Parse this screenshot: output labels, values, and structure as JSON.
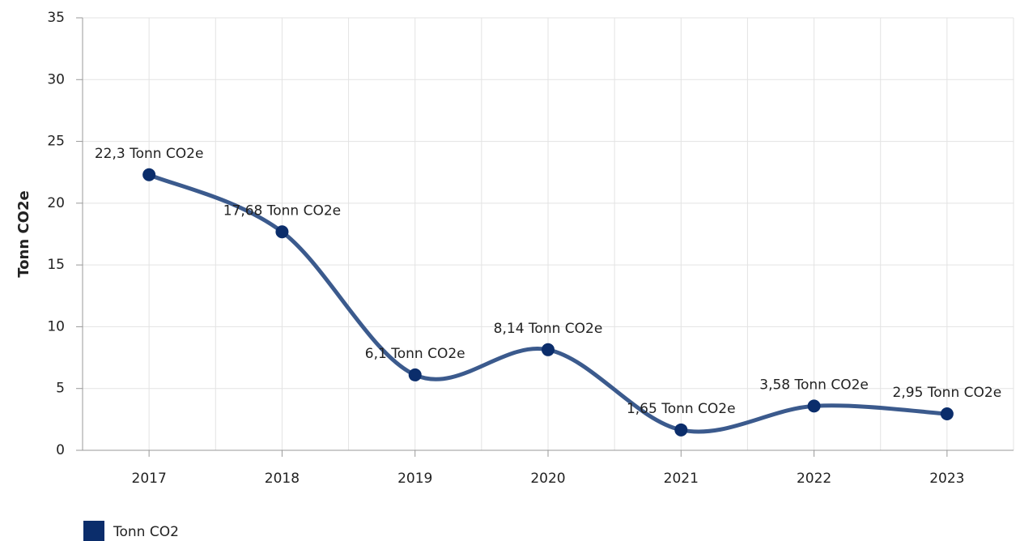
{
  "chart_data": {
    "type": "line",
    "y_label": "Tonn CO2e",
    "categories": [
      "2017",
      "2018",
      "2019",
      "2020",
      "2021",
      "2022",
      "2023"
    ],
    "series": [
      {
        "name": "Tonn CO2",
        "color": "#0b2d6b",
        "line_color": "#3b5a8d",
        "values": [
          22.3,
          17.68,
          6.1,
          8.14,
          1.65,
          3.58,
          2.95
        ],
        "value_labels": [
          "22,3 Tonn CO2e",
          "17,68 Tonn CO2e",
          "6,1 Tonn CO2e",
          "8,14 Tonn CO2e",
          "1,65 Tonn CO2e",
          "3,58 Tonn CO2e",
          "2,95 Tonn CO2e"
        ]
      }
    ],
    "ylim": [
      0,
      35
    ],
    "yticks": [
      0,
      5,
      10,
      15,
      20,
      25,
      30,
      35
    ],
    "grid": true,
    "smooth": true,
    "legend": "bottom-left"
  }
}
